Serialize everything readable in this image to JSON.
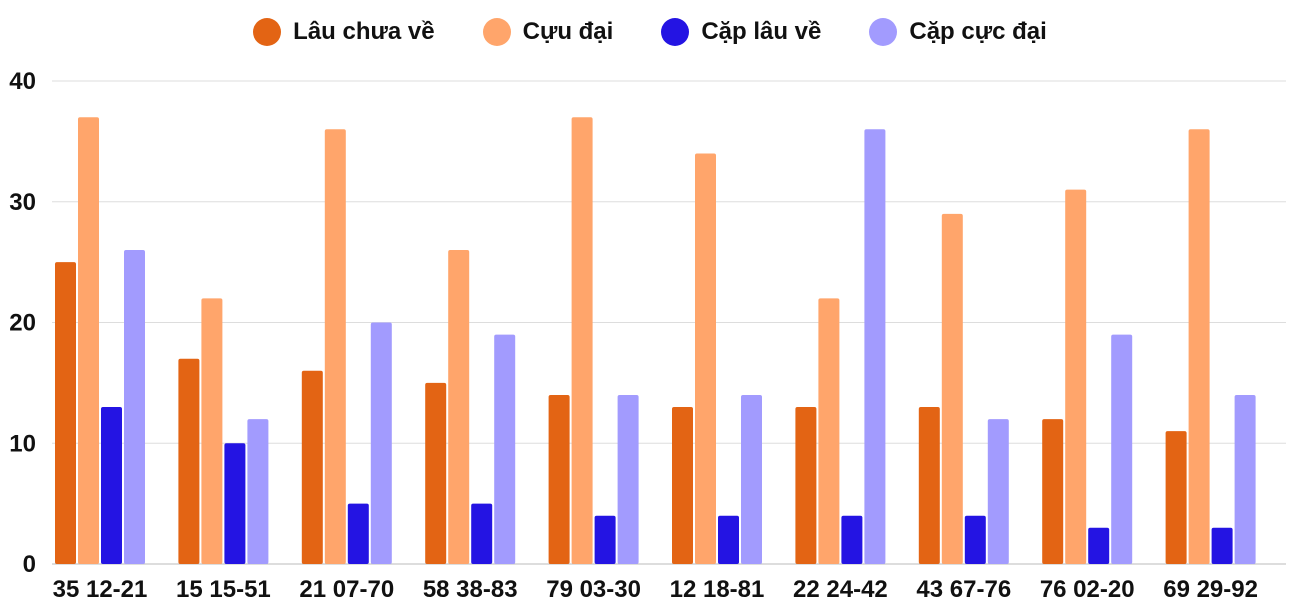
{
  "chart_data": {
    "type": "bar",
    "title": "",
    "xlabel": "",
    "ylabel": "",
    "categories": [
      "35 12-21",
      "15 15-51",
      "21 07-70",
      "58 38-83",
      "79 03-30",
      "12 18-81",
      "22 24-42",
      "43 67-76",
      "76 02-20",
      "69 29-92"
    ],
    "series": [
      {
        "name": "Lâu chưa về",
        "color": "#E36414",
        "values": [
          25,
          17,
          16,
          15,
          14,
          13,
          13,
          13,
          12,
          11
        ]
      },
      {
        "name": "Cựu đại",
        "color": "#FFA56B",
        "values": [
          37,
          22,
          36,
          26,
          37,
          34,
          22,
          29,
          31,
          36
        ]
      },
      {
        "name": "Cặp lâu về",
        "color": "#2414E3",
        "values": [
          13,
          10,
          5,
          5,
          4,
          4,
          4,
          4,
          3,
          3
        ]
      },
      {
        "name": "Cặp cực đại",
        "color": "#A29BFE",
        "values": [
          26,
          12,
          20,
          19,
          14,
          14,
          36,
          12,
          19,
          14
        ]
      }
    ],
    "ylim": [
      0,
      40
    ],
    "yticks": [
      0,
      10,
      20,
      30,
      40
    ],
    "grid": true,
    "legend_position": "top-center"
  }
}
